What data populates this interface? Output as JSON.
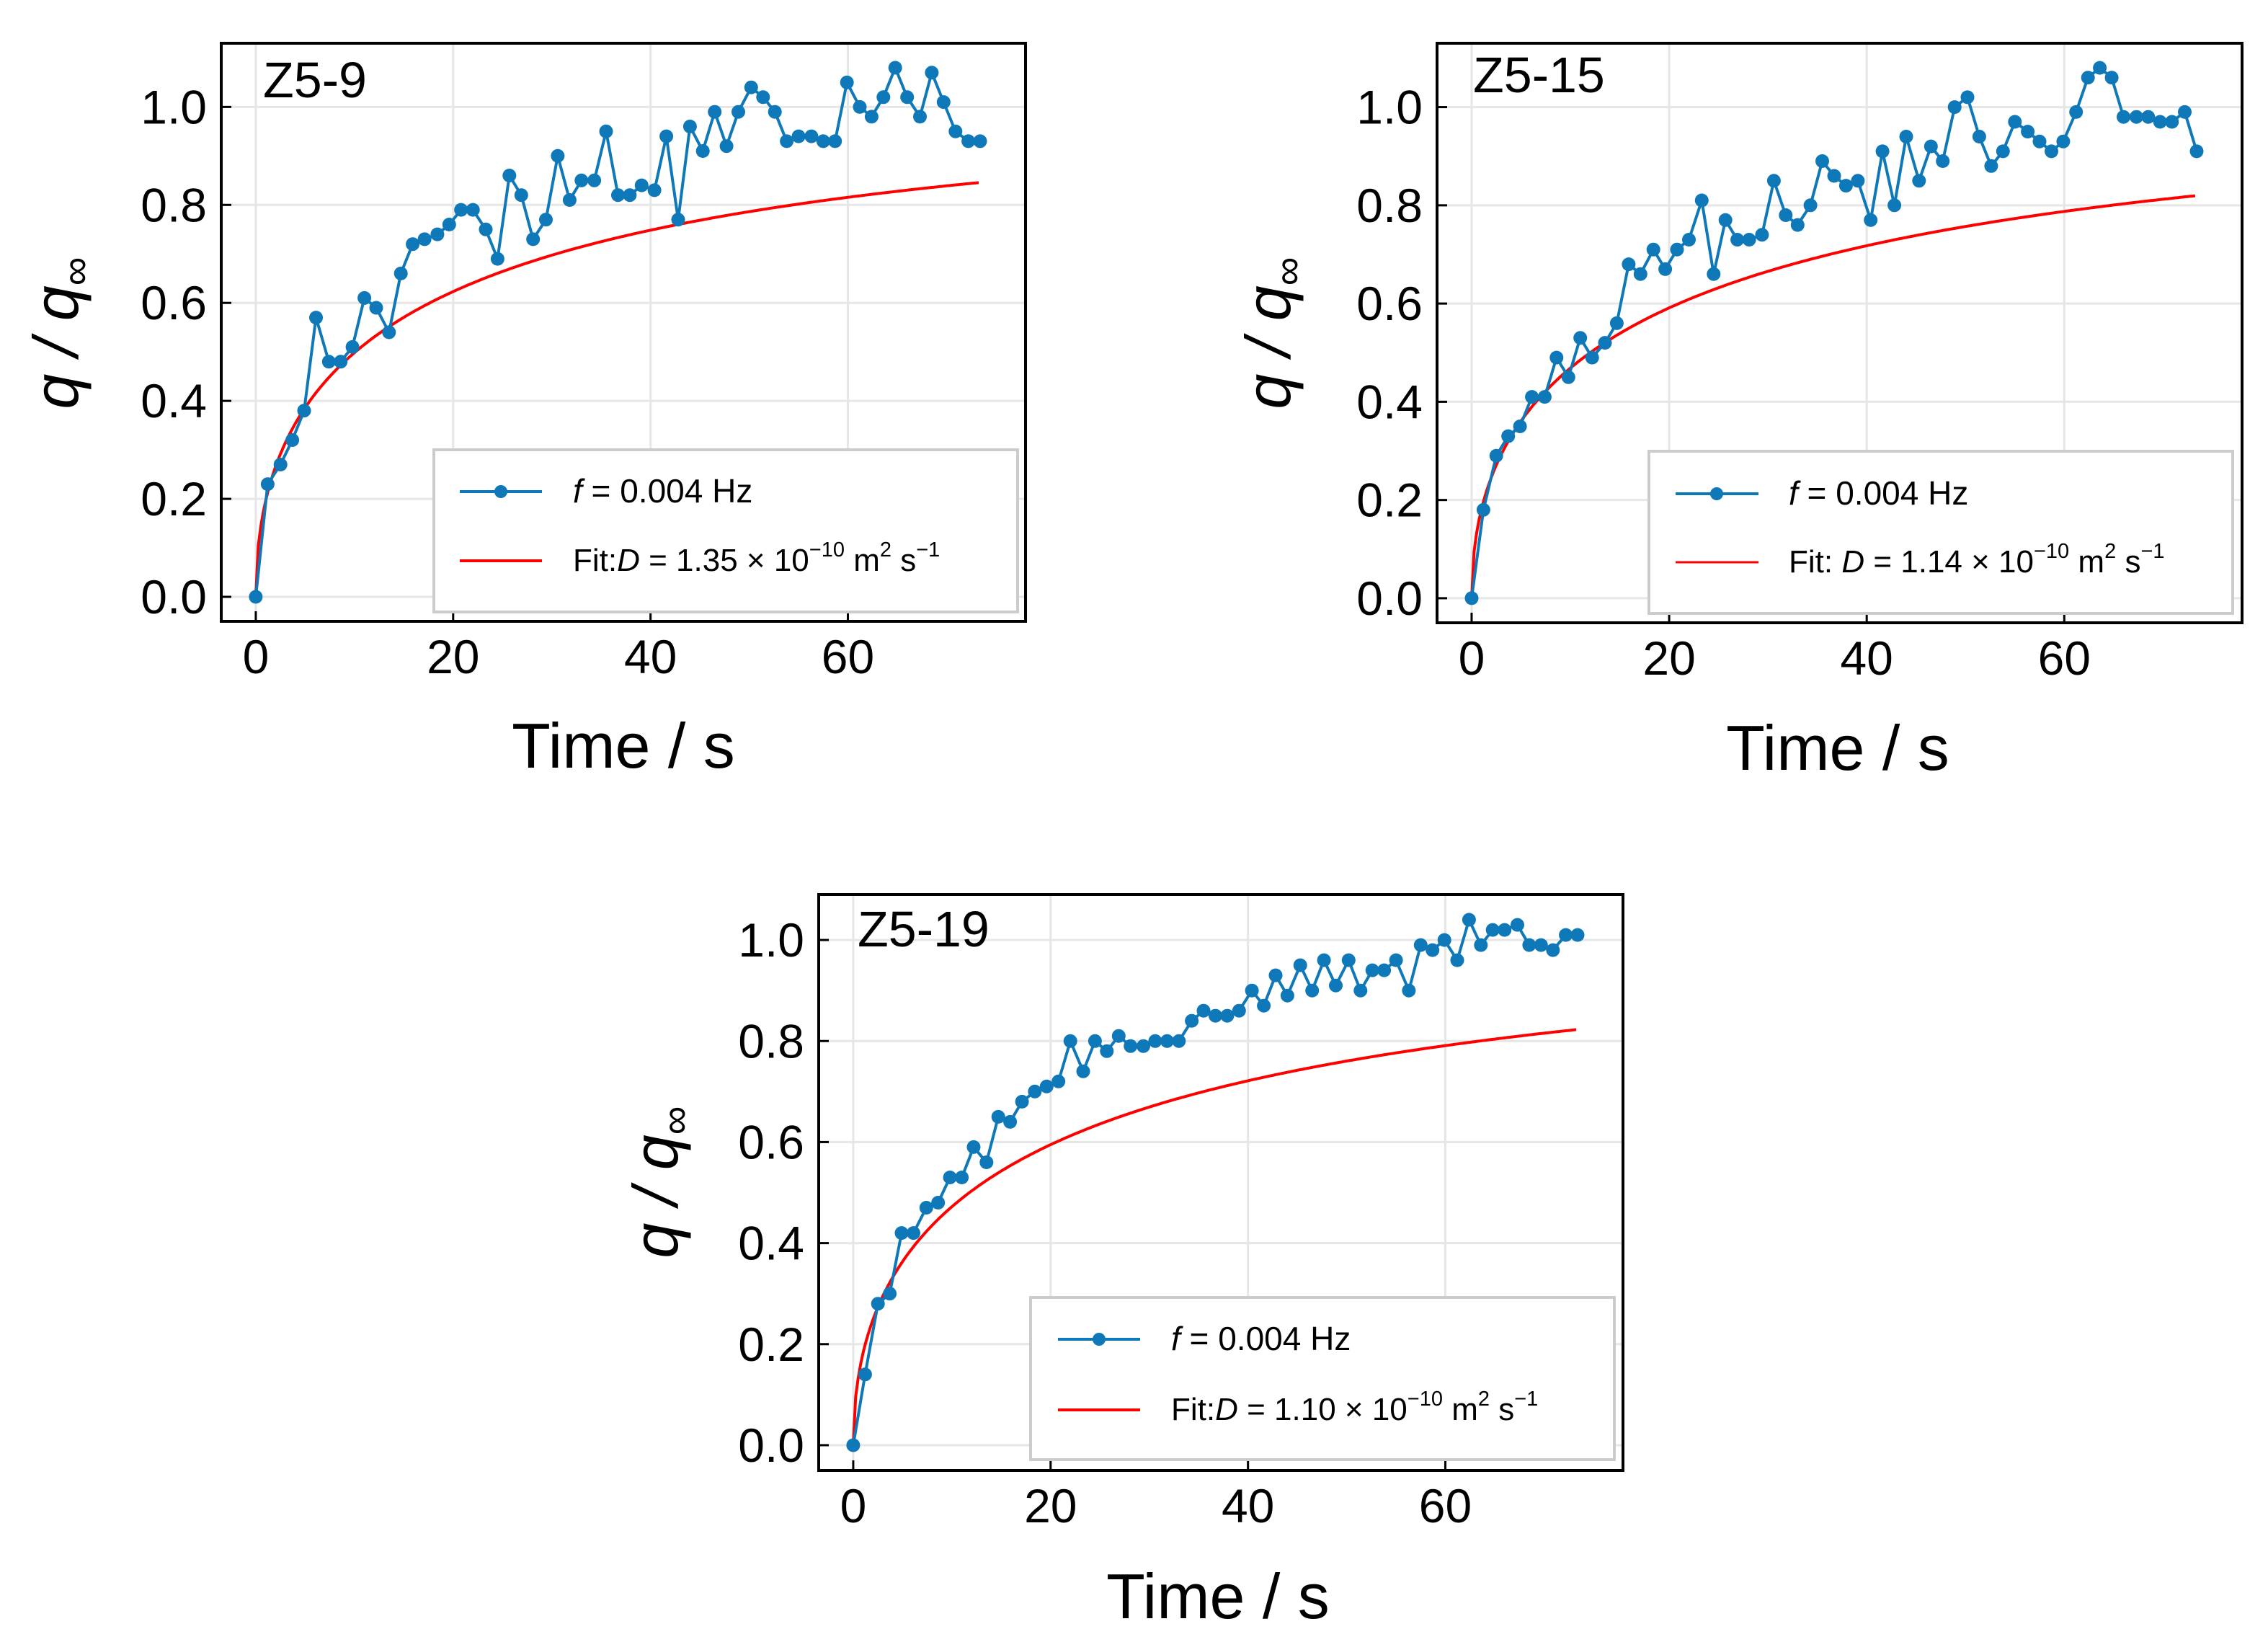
{
  "colors": {
    "data": "#0e78b8",
    "fit": "#ff0000",
    "grid": "#e6e6e6",
    "axis": "#000000",
    "legend_border": "#cccccc"
  },
  "chart_data": [
    {
      "type": "line",
      "title": "Z5-9",
      "xlabel": "Time / s",
      "ylabel": {
        "main": "q / q",
        "sub": "∞"
      },
      "xlim": [
        -3.5,
        78
      ],
      "ylim": [
        -0.05,
        1.13
      ],
      "xticks": [
        0,
        20,
        40,
        60
      ],
      "yticks": [
        0.0,
        0.2,
        0.4,
        0.6,
        0.8,
        1.0
      ],
      "xtick_labels": [
        "0",
        "20",
        "40",
        "60"
      ],
      "ytick_labels": [
        "0.0",
        "0.2",
        "0.4",
        "0.6",
        "0.8",
        "1.0"
      ],
      "legend": {
        "position": "lower-right",
        "series_label": {
          "italic": "f",
          "text": " = 0.004 Hz"
        },
        "fit_label": {
          "prefix": "Fit:",
          "italic": "D",
          "text": " = 1.35 × 10",
          "sup": "−10",
          "unit": " m",
          "unit_sup": "2",
          "unit_tail": " s",
          "tail_sup": "−1"
        }
      },
      "series": [
        {
          "name": "f = 0.004 Hz",
          "x": [
            0,
            1.2,
            2.5,
            3.7,
            4.9,
            6.1,
            7.4,
            8.6,
            9.8,
            11.0,
            12.2,
            13.5,
            14.7,
            15.9,
            17.1,
            18.4,
            19.6,
            20.8,
            22.0,
            23.3,
            24.5,
            25.7,
            26.9,
            28.1,
            29.4,
            30.6,
            31.8,
            33.0,
            34.3,
            35.5,
            36.7,
            37.9,
            39.1,
            40.4,
            41.6,
            42.8,
            44.0,
            45.3,
            46.5,
            47.7,
            48.9,
            50.2,
            51.4,
            52.6,
            53.8,
            55.0,
            56.3,
            57.5,
            58.7,
            59.9,
            61.2,
            62.4,
            63.6,
            64.8,
            66.0,
            67.3,
            68.5,
            69.7,
            70.9,
            72.2,
            73.4
          ],
          "y": [
            0.0,
            0.23,
            0.27,
            0.32,
            0.38,
            0.57,
            0.48,
            0.48,
            0.51,
            0.61,
            0.59,
            0.54,
            0.66,
            0.72,
            0.73,
            0.74,
            0.76,
            0.79,
            0.79,
            0.75,
            0.69,
            0.86,
            0.82,
            0.73,
            0.77,
            0.9,
            0.81,
            0.85,
            0.85,
            0.95,
            0.82,
            0.82,
            0.84,
            0.83,
            0.94,
            0.77,
            0.96,
            0.91,
            0.99,
            0.92,
            0.99,
            1.04,
            1.02,
            0.99,
            0.93,
            0.94,
            0.94,
            0.93,
            0.93,
            1.05,
            1.0,
            0.98,
            1.02,
            1.08,
            1.02,
            0.98,
            1.07,
            1.01,
            0.95,
            0.93,
            0.93
          ]
        }
      ],
      "fit": {
        "D_label": "1.35 × 10^-10 m^2 s^-1",
        "tau": 21.0,
        "x_max": 73.4
      }
    },
    {
      "type": "line",
      "title": "Z5-15",
      "xlabel": "Time / s",
      "ylabel": {
        "main": "q / q",
        "sub": "∞"
      },
      "xlim": [
        -3.5,
        78
      ],
      "ylim": [
        -0.05,
        1.13
      ],
      "xticks": [
        0,
        20,
        40,
        60
      ],
      "yticks": [
        0.0,
        0.2,
        0.4,
        0.6,
        0.8,
        1.0
      ],
      "xtick_labels": [
        "0",
        "20",
        "40",
        "60"
      ],
      "ytick_labels": [
        "0.0",
        "0.2",
        "0.4",
        "0.6",
        "0.8",
        "1.0"
      ],
      "legend": {
        "position": "lower-right",
        "series_label": {
          "italic": "f",
          "text": " = 0.004 Hz"
        },
        "fit_label": {
          "prefix": "Fit: ",
          "italic": "D",
          "text": " = 1.14 × 10",
          "sup": "−10",
          "unit": " m",
          "unit_sup": "2",
          "unit_tail": " s",
          "tail_sup": "−1"
        }
      },
      "series": [
        {
          "name": "f = 0.004 Hz",
          "x": [
            0,
            1.2,
            2.5,
            3.7,
            4.9,
            6.1,
            7.4,
            8.6,
            9.8,
            11.0,
            12.2,
            13.5,
            14.7,
            15.9,
            17.1,
            18.4,
            19.6,
            20.8,
            22.0,
            23.3,
            24.5,
            25.7,
            26.9,
            28.1,
            29.4,
            30.6,
            31.8,
            33.0,
            34.3,
            35.5,
            36.7,
            37.9,
            39.1,
            40.4,
            41.6,
            42.8,
            44.0,
            45.3,
            46.5,
            47.7,
            48.9,
            50.2,
            51.4,
            52.6,
            53.8,
            55.0,
            56.3,
            57.5,
            58.7,
            59.9,
            61.2,
            62.4,
            63.6,
            64.8,
            66.0,
            67.3,
            68.5,
            69.7,
            70.9,
            72.2,
            73.4
          ],
          "y": [
            0.0,
            0.18,
            0.29,
            0.33,
            0.35,
            0.41,
            0.41,
            0.49,
            0.45,
            0.53,
            0.49,
            0.52,
            0.56,
            0.68,
            0.66,
            0.71,
            0.67,
            0.71,
            0.73,
            0.81,
            0.66,
            0.77,
            0.73,
            0.73,
            0.74,
            0.85,
            0.78,
            0.76,
            0.8,
            0.89,
            0.86,
            0.84,
            0.85,
            0.77,
            0.91,
            0.8,
            0.94,
            0.85,
            0.92,
            0.89,
            1.0,
            1.02,
            0.94,
            0.88,
            0.91,
            0.97,
            0.95,
            0.93,
            0.91,
            0.93,
            0.99,
            1.06,
            1.08,
            1.06,
            0.98,
            0.98,
            0.98,
            0.97,
            0.97,
            0.99,
            0.91
          ]
        }
      ],
      "fit": {
        "D_label": "1.14 × 10^-10 m^2 s^-1",
        "tau": 25.0,
        "x_max": 73.4
      }
    },
    {
      "type": "line",
      "title": "Z5-19",
      "xlabel": "Time / s",
      "ylabel": {
        "main": "q / q",
        "sub": "∞"
      },
      "xlim": [
        -3.5,
        78
      ],
      "ylim": [
        -0.05,
        1.09
      ],
      "xticks": [
        0,
        20,
        40,
        60
      ],
      "yticks": [
        0.0,
        0.2,
        0.4,
        0.6,
        0.8,
        1.0
      ],
      "xtick_labels": [
        "0",
        "20",
        "40",
        "60"
      ],
      "ytick_labels": [
        "0.0",
        "0.2",
        "0.4",
        "0.6",
        "0.8",
        "1.0"
      ],
      "legend": {
        "position": "lower-right",
        "series_label": {
          "italic": "f",
          "text": " = 0.004 Hz"
        },
        "fit_label": {
          "prefix": "Fit:",
          "italic": "D",
          "text": " = 1.10 × 10",
          "sup": "−10",
          "unit": " m",
          "unit_sup": "2",
          "unit_tail": " s",
          "tail_sup": "−1"
        }
      },
      "series": [
        {
          "name": "f = 0.004 Hz",
          "x": [
            0,
            1.2,
            2.5,
            3.7,
            4.9,
            6.1,
            7.4,
            8.6,
            9.8,
            11.0,
            12.2,
            13.5,
            14.7,
            15.9,
            17.1,
            18.4,
            19.6,
            20.8,
            22.0,
            23.3,
            24.5,
            25.7,
            26.9,
            28.1,
            29.4,
            30.6,
            31.8,
            33.0,
            34.3,
            35.5,
            36.7,
            37.9,
            39.1,
            40.4,
            41.6,
            42.8,
            44.0,
            45.3,
            46.5,
            47.7,
            48.9,
            50.2,
            51.4,
            52.6,
            53.8,
            55.0,
            56.3,
            57.5,
            58.7,
            59.9,
            61.2,
            62.4,
            63.6,
            64.8,
            66.0,
            67.3,
            68.5,
            69.7,
            70.9,
            72.2,
            73.4
          ],
          "y": [
            0.0,
            0.14,
            0.28,
            0.3,
            0.42,
            0.42,
            0.47,
            0.48,
            0.53,
            0.53,
            0.59,
            0.56,
            0.65,
            0.64,
            0.68,
            0.7,
            0.71,
            0.72,
            0.8,
            0.74,
            0.8,
            0.78,
            0.81,
            0.79,
            0.79,
            0.8,
            0.8,
            0.8,
            0.84,
            0.86,
            0.85,
            0.85,
            0.86,
            0.9,
            0.87,
            0.93,
            0.89,
            0.95,
            0.9,
            0.96,
            0.91,
            0.96,
            0.9,
            0.94,
            0.94,
            0.96,
            0.9,
            0.99,
            0.98,
            1.0,
            0.96,
            1.04,
            0.99,
            1.02,
            1.02,
            1.03,
            0.99,
            0.99,
            0.98,
            1.01,
            1.01
          ]
        }
      ],
      "fit": {
        "D_label": "1.10 × 10^-10 m^2 s^-1",
        "tau": 24.5,
        "x_max": 73.4
      }
    }
  ]
}
